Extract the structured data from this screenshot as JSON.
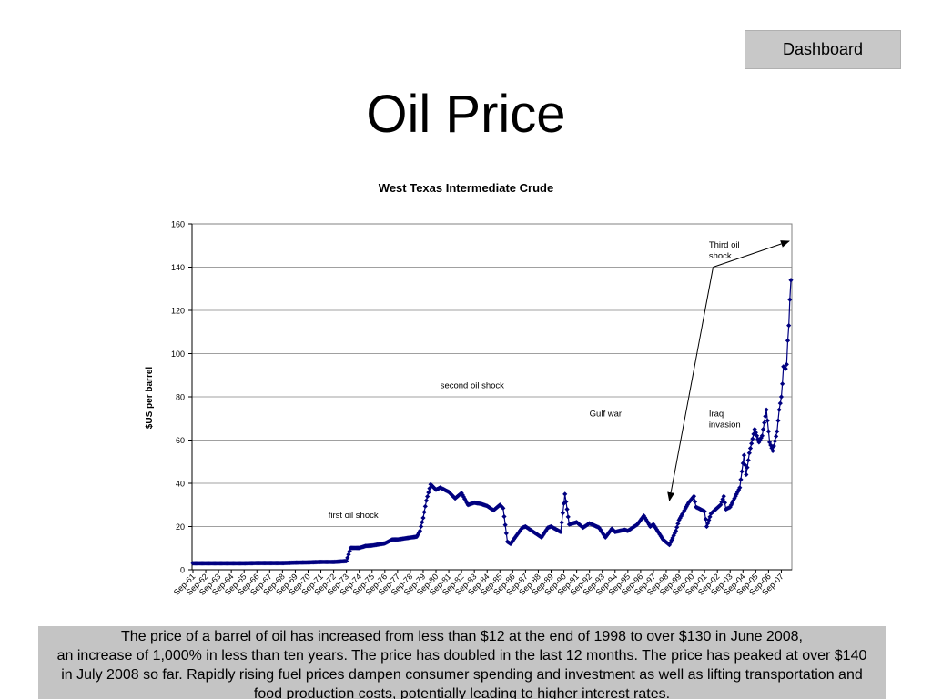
{
  "header": {
    "dashboard_label": "Dashboard",
    "title": "Oil Price"
  },
  "caption": {
    "lines": [
      "The price of a barrel of oil has increased from less than $12 at the end of 1998 to over $130 in June 2008,",
      "an increase of 1,000% in less than ten years.  The price has  doubled in the last 12 months. The price has peaked at over $140",
      "in July 2008 so far.  Rapidly rising fuel prices dampen consumer spending and investment as well as lifting transportation and",
      "food production costs, potentially leading to higher interest rates."
    ]
  },
  "chart_data": {
    "type": "line",
    "title": "West Texas Intermediate Crude",
    "ylabel": "$US per barrel",
    "xlabel": "",
    "ylim": [
      0,
      160
    ],
    "yticks": [
      0,
      20,
      40,
      60,
      80,
      100,
      120,
      140,
      160
    ],
    "grid": true,
    "line_color": "#000080",
    "marker": "diamond",
    "xticks": [
      "Sep-61",
      "Sep-62",
      "Sep-63",
      "Sep-64",
      "Sep-65",
      "Sep-66",
      "Sep-67",
      "Sep-68",
      "Sep-69",
      "Sep-70",
      "Sep-71",
      "Sep-72",
      "Sep-73",
      "Sep-74",
      "Sep-75",
      "Sep-76",
      "Sep-77",
      "Sep-78",
      "Sep-79",
      "Sep-80",
      "Sep-81",
      "Sep-82",
      "Sep-83",
      "Sep-84",
      "Sep-85",
      "Sep-86",
      "Sep-87",
      "Sep-88",
      "Sep-89",
      "Sep-90",
      "Sep-91",
      "Sep-92",
      "Sep-93",
      "Sep-94",
      "Sep-95",
      "Sep-96",
      "Sep-97",
      "Sep-98",
      "Sep-99",
      "Sep-00",
      "Sep-01",
      "Sep-02",
      "Sep-03",
      "Sep-04",
      "Sep-05",
      "Sep-06",
      "Sep-07"
    ],
    "series": [
      {
        "x_start": "Sep-61",
        "x_end": "Jun-08",
        "points": [
          [
            "Sep-61",
            3.0
          ],
          [
            "Sep-62",
            3.0
          ],
          [
            "Sep-63",
            3.0
          ],
          [
            "Sep-64",
            3.0
          ],
          [
            "Sep-65",
            3.0
          ],
          [
            "Sep-66",
            3.1
          ],
          [
            "Sep-67",
            3.1
          ],
          [
            "Sep-68",
            3.1
          ],
          [
            "Sep-69",
            3.3
          ],
          [
            "Sep-70",
            3.4
          ],
          [
            "Sep-71",
            3.6
          ],
          [
            "Sep-72",
            3.6
          ],
          [
            "Sep-73",
            4.0
          ],
          [
            "Jan-74",
            10.1
          ],
          [
            "Sep-74",
            10.1
          ],
          [
            "Mar-75",
            11.0
          ],
          [
            "Sep-75",
            11.2
          ],
          [
            "Sep-76",
            12.2
          ],
          [
            "Apr-77",
            14.0
          ],
          [
            "Sep-77",
            14.0
          ],
          [
            "Sep-78",
            14.9
          ],
          [
            "Mar-79",
            15.3
          ],
          [
            "Jun-79",
            18.0
          ],
          [
            "Sep-79",
            24.0
          ],
          [
            "Dec-79",
            32.0
          ],
          [
            "Apr-80",
            39.5
          ],
          [
            "Sep-80",
            37.0
          ],
          [
            "Jan-81",
            38.0
          ],
          [
            "Sep-81",
            36.0
          ],
          [
            "Mar-82",
            33.0
          ],
          [
            "Sep-82",
            35.5
          ],
          [
            "Mar-83",
            30.0
          ],
          [
            "Sep-83",
            31.0
          ],
          [
            "Mar-84",
            30.5
          ],
          [
            "Sep-84",
            29.5
          ],
          [
            "Mar-85",
            27.5
          ],
          [
            "Sep-85",
            30.0
          ],
          [
            "Dec-85",
            28.5
          ],
          [
            "Apr-86",
            13.0
          ],
          [
            "Jul-86",
            12.0
          ],
          [
            "Dec-86",
            15.5
          ],
          [
            "Jun-87",
            19.5
          ],
          [
            "Sep-87",
            20.0
          ],
          [
            "Jun-88",
            17.0
          ],
          [
            "Dec-88",
            15.0
          ],
          [
            "Jun-89",
            19.5
          ],
          [
            "Sep-89",
            20.0
          ],
          [
            "Jun-90",
            17.5
          ],
          [
            "Oct-90",
            35.0
          ],
          [
            "Feb-91",
            21.0
          ],
          [
            "Sep-91",
            22.0
          ],
          [
            "Mar-92",
            19.5
          ],
          [
            "Sep-92",
            21.5
          ],
          [
            "Jun-93",
            19.5
          ],
          [
            "Dec-93",
            15.0
          ],
          [
            "Jun-94",
            19.0
          ],
          [
            "Sep-94",
            17.5
          ],
          [
            "Jun-95",
            18.5
          ],
          [
            "Sep-95",
            18.0
          ],
          [
            "Jun-96",
            21.0
          ],
          [
            "Dec-96",
            25.0
          ],
          [
            "Jun-97",
            20.0
          ],
          [
            "Sep-97",
            21.0
          ],
          [
            "Jun-98",
            14.0
          ],
          [
            "Dec-98",
            11.5
          ],
          [
            "Jun-99",
            18.0
          ],
          [
            "Sep-99",
            23.0
          ],
          [
            "Jun-00",
            31.0
          ],
          [
            "Nov-00",
            34.0
          ],
          [
            "Jan-01",
            29.0
          ],
          [
            "Sep-01",
            27.0
          ],
          [
            "Nov-01",
            20.0
          ],
          [
            "Mar-02",
            26.0
          ],
          [
            "Dec-02",
            30.0
          ],
          [
            "Mar-03",
            34.0
          ],
          [
            "May-03",
            28.0
          ],
          [
            "Sep-03",
            29.0
          ],
          [
            "Dec-03",
            32.0
          ],
          [
            "Jun-04",
            38.0
          ],
          [
            "Oct-04",
            53.0
          ],
          [
            "Dec-04",
            44.0
          ],
          [
            "Mar-05",
            54.0
          ],
          [
            "Aug-05",
            65.0
          ],
          [
            "Dec-05",
            59.0
          ],
          [
            "Mar-06",
            62.0
          ],
          [
            "Jul-06",
            74.0
          ],
          [
            "Oct-06",
            59.0
          ],
          [
            "Jan-07",
            55.0
          ],
          [
            "May-07",
            64.0
          ],
          [
            "Jul-07",
            74.0
          ],
          [
            "Sep-07",
            80.0
          ],
          [
            "Oct-07",
            86.0
          ],
          [
            "Nov-07",
            94.0
          ],
          [
            "Jan-08",
            93.0
          ],
          [
            "Feb-08",
            95.0
          ],
          [
            "Mar-08",
            106.0
          ],
          [
            "Apr-08",
            113.0
          ],
          [
            "May-08",
            125.0
          ],
          [
            "Jun-08",
            134.0
          ]
        ]
      }
    ],
    "annotations": [
      {
        "text": "first oil shock"
      },
      {
        "text": "second oil shock"
      },
      {
        "text": "Gulf war"
      },
      {
        "text": "Iraq invasion",
        "lines": [
          "Iraq",
          "invasion"
        ]
      },
      {
        "text": "Third oil shock",
        "lines": [
          "Third oil",
          "shock"
        ]
      }
    ]
  }
}
